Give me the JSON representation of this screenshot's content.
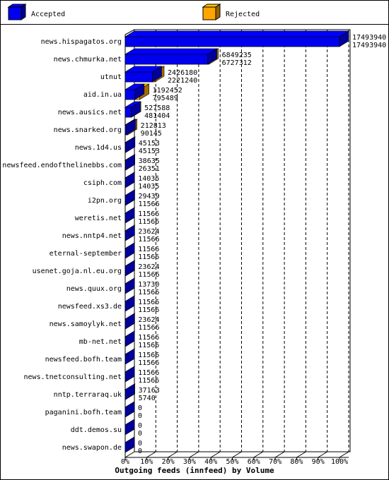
{
  "chart_data": {
    "type": "bar",
    "orientation": "horizontal",
    "title": "Outgoing feeds (innfeed) by Volume",
    "categories": [
      "news.hispagatos.org",
      "news.chmurka.net",
      "utnut",
      "aid.in.ua",
      "news.ausics.net",
      "news.snarked.org",
      "news.1d4.us",
      "newsfeed.endofthelinebbs.com",
      "csiph.com",
      "i2pn.org",
      "weretis.net",
      "news.nntp4.net",
      "eternal-september",
      "usenet.goja.nl.eu.org",
      "news.quux.org",
      "newsfeed.xs3.de",
      "news.samoylyk.net",
      "mb-net.net",
      "newsfeed.bofh.team",
      "news.tnetconsulting.net",
      "nntp.terraraq.uk",
      "paganini.bofh.team",
      "ddt.demos.su",
      "news.swapon.de"
    ],
    "series": [
      {
        "name": "Rejected",
        "color": "#ffa500",
        "values": [
          17493940,
          6849235,
          2426180,
          1192452,
          527588,
          212813,
          45153,
          38635,
          14035,
          29439,
          11566,
          23624,
          11566,
          23624,
          13730,
          11566,
          23624,
          11566,
          11566,
          11566,
          37163,
          0,
          0,
          0
        ]
      },
      {
        "name": "Accepted",
        "color": "#0000ee",
        "values": [
          17493940,
          6727312,
          2221240,
          795489,
          481404,
          90145,
          45153,
          26351,
          14035,
          11566,
          11566,
          11566,
          11566,
          11566,
          11566,
          11566,
          11566,
          11566,
          11566,
          11566,
          5740,
          0,
          0,
          0
        ]
      }
    ],
    "xlim": [
      0,
      17493940
    ],
    "xticks": [
      {
        "value": 0,
        "label": "0%"
      },
      {
        "value": 1749394,
        "label": "10%"
      },
      {
        "value": 3498788,
        "label": "20%"
      },
      {
        "value": 5248182,
        "label": "30%"
      },
      {
        "value": 6997576,
        "label": "40%"
      },
      {
        "value": 8746970,
        "label": "50%"
      },
      {
        "value": 10496364,
        "label": "60%"
      },
      {
        "value": 12245758,
        "label": "70%"
      },
      {
        "value": 13995152,
        "label": "80%"
      },
      {
        "value": 15744546,
        "label": "90%"
      },
      {
        "value": 17493940,
        "label": "100%"
      }
    ],
    "grid": true
  }
}
